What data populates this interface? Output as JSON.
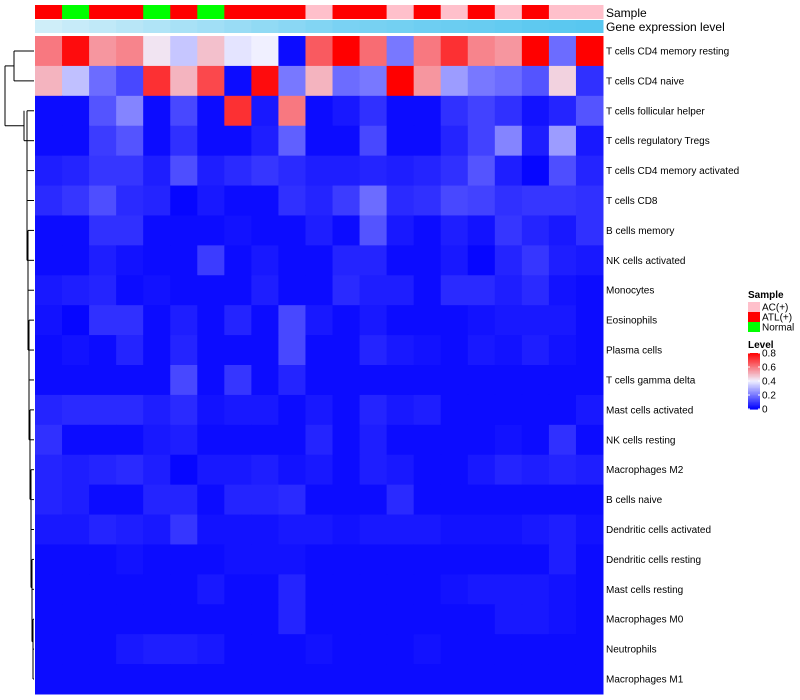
{
  "chart_data": {
    "type": "heatmap",
    "title": "",
    "annotations": [
      {
        "name": "Sample",
        "type": "categorical"
      },
      {
        "name": "Gene expression level",
        "type": "continuous"
      }
    ],
    "samples": [
      "ATL(+)",
      "Normal",
      "ATL(+)",
      "ATL(+)",
      "Normal",
      "ATL(+)",
      "Normal",
      "ATL(+)",
      "ATL(+)",
      "ATL(+)",
      "AC(+)",
      "ATL(+)",
      "ATL(+)",
      "AC(+)",
      "ATL(+)",
      "AC(+)",
      "ATL(+)",
      "AC(+)",
      "ATL(+)",
      "AC(+)",
      "AC(+)"
    ],
    "expression_level": [
      0.15,
      0.2,
      0.25,
      0.3,
      0.35,
      0.4,
      0.45,
      0.5,
      0.55,
      0.6,
      0.65,
      0.7,
      0.72,
      0.75,
      0.78,
      0.8,
      0.82,
      0.85,
      0.88,
      0.9,
      0.92
    ],
    "rows": [
      "T cells CD4 memory resting",
      "T cells CD4 naive",
      "T cells follicular helper",
      "T cells regulatory  Tregs",
      "T cells CD4 memory activated",
      "T cells CD8",
      "B cells memory",
      "NK cells activated",
      "Monocytes",
      "Eosinophils",
      "Plasma cells",
      "T cells gamma delta",
      "Mast cells activated",
      "NK cells resting",
      "Macrophages M2",
      "B cells naive",
      "Dendritic cells activated",
      "Dendritic cells resting",
      "Mast cells resting",
      "Macrophages M0",
      "Neutrophils",
      "Macrophages M1"
    ],
    "values": [
      [
        0.6,
        0.78,
        0.55,
        0.58,
        0.42,
        0.33,
        0.48,
        0.38,
        0.4,
        0.02,
        0.65,
        0.8,
        0.62,
        0.2,
        0.6,
        0.72,
        0.58,
        0.55,
        0.8,
        0.18,
        0.8
      ],
      [
        0.5,
        0.32,
        0.18,
        0.12,
        0.72,
        0.5,
        0.68,
        0.02,
        0.78,
        0.2,
        0.5,
        0.18,
        0.2,
        0.8,
        0.55,
        0.26,
        0.2,
        0.18,
        0.14,
        0.45,
        0.08
      ],
      [
        0.02,
        0.02,
        0.14,
        0.22,
        0.02,
        0.12,
        0.02,
        0.72,
        0.04,
        0.6,
        0.02,
        0.04,
        0.08,
        0.02,
        0.02,
        0.08,
        0.11,
        0.08,
        0.03,
        0.06,
        0.14
      ],
      [
        0.02,
        0.02,
        0.1,
        0.14,
        0.02,
        0.08,
        0.02,
        0.02,
        0.05,
        0.16,
        0.02,
        0.02,
        0.12,
        0.02,
        0.02,
        0.06,
        0.11,
        0.22,
        0.05,
        0.26,
        0.04
      ],
      [
        0.05,
        0.06,
        0.09,
        0.09,
        0.05,
        0.13,
        0.05,
        0.07,
        0.09,
        0.07,
        0.05,
        0.05,
        0.06,
        0.05,
        0.06,
        0.08,
        0.14,
        0.05,
        0.01,
        0.13,
        0.06
      ],
      [
        0.07,
        0.09,
        0.13,
        0.07,
        0.06,
        0.01,
        0.04,
        0.02,
        0.02,
        0.08,
        0.06,
        0.1,
        0.18,
        0.07,
        0.08,
        0.12,
        0.11,
        0.08,
        0.09,
        0.09,
        0.08
      ],
      [
        0.02,
        0.02,
        0.08,
        0.08,
        0.02,
        0.02,
        0.02,
        0.03,
        0.02,
        0.02,
        0.05,
        0.02,
        0.14,
        0.04,
        0.02,
        0.05,
        0.03,
        0.09,
        0.06,
        0.04,
        0.08
      ],
      [
        0.02,
        0.02,
        0.05,
        0.03,
        0.02,
        0.02,
        0.1,
        0.02,
        0.04,
        0.02,
        0.02,
        0.06,
        0.06,
        0.02,
        0.02,
        0.04,
        0.01,
        0.06,
        0.09,
        0.05,
        0.04
      ],
      [
        0.04,
        0.05,
        0.06,
        0.02,
        0.03,
        0.02,
        0.02,
        0.02,
        0.05,
        0.02,
        0.02,
        0.07,
        0.05,
        0.05,
        0.02,
        0.07,
        0.07,
        0.05,
        0.07,
        0.03,
        0.02
      ],
      [
        0.03,
        0.01,
        0.08,
        0.08,
        0.02,
        0.05,
        0.02,
        0.06,
        0.02,
        0.12,
        0.04,
        0.02,
        0.04,
        0.02,
        0.02,
        0.02,
        0.03,
        0.04,
        0.04,
        0.04,
        0.02
      ],
      [
        0.02,
        0.03,
        0.02,
        0.06,
        0.02,
        0.06,
        0.02,
        0.02,
        0.02,
        0.12,
        0.02,
        0.02,
        0.06,
        0.04,
        0.03,
        0.02,
        0.04,
        0.03,
        0.05,
        0.03,
        0.02
      ],
      [
        0.02,
        0.02,
        0.02,
        0.02,
        0.02,
        0.12,
        0.02,
        0.09,
        0.02,
        0.06,
        0.02,
        0.02,
        0.02,
        0.02,
        0.02,
        0.02,
        0.02,
        0.02,
        0.02,
        0.02,
        0.02
      ],
      [
        0.06,
        0.07,
        0.07,
        0.07,
        0.05,
        0.07,
        0.03,
        0.04,
        0.04,
        0.02,
        0.04,
        0.02,
        0.06,
        0.04,
        0.05,
        0.02,
        0.02,
        0.02,
        0.02,
        0.02,
        0.04
      ],
      [
        0.08,
        0.02,
        0.02,
        0.02,
        0.04,
        0.05,
        0.02,
        0.02,
        0.02,
        0.02,
        0.06,
        0.02,
        0.05,
        0.02,
        0.02,
        0.02,
        0.02,
        0.03,
        0.02,
        0.08,
        0.02
      ],
      [
        0.06,
        0.05,
        0.06,
        0.07,
        0.05,
        0.01,
        0.04,
        0.04,
        0.05,
        0.03,
        0.04,
        0.02,
        0.05,
        0.04,
        0.02,
        0.02,
        0.04,
        0.06,
        0.05,
        0.06,
        0.05
      ],
      [
        0.06,
        0.05,
        0.02,
        0.02,
        0.06,
        0.06,
        0.02,
        0.06,
        0.06,
        0.07,
        0.02,
        0.02,
        0.02,
        0.07,
        0.02,
        0.02,
        0.02,
        0.02,
        0.02,
        0.02,
        0.02
      ],
      [
        0.04,
        0.04,
        0.06,
        0.05,
        0.04,
        0.09,
        0.03,
        0.03,
        0.03,
        0.04,
        0.04,
        0.03,
        0.04,
        0.04,
        0.04,
        0.03,
        0.03,
        0.03,
        0.04,
        0.05,
        0.03
      ],
      [
        0.02,
        0.02,
        0.02,
        0.03,
        0.02,
        0.02,
        0.02,
        0.03,
        0.03,
        0.03,
        0.02,
        0.02,
        0.02,
        0.02,
        0.02,
        0.02,
        0.02,
        0.02,
        0.02,
        0.05,
        0.02
      ],
      [
        0.02,
        0.02,
        0.02,
        0.02,
        0.02,
        0.02,
        0.04,
        0.02,
        0.02,
        0.06,
        0.02,
        0.02,
        0.02,
        0.02,
        0.02,
        0.03,
        0.04,
        0.04,
        0.04,
        0.03,
        0.02
      ],
      [
        0.02,
        0.02,
        0.02,
        0.02,
        0.02,
        0.02,
        0.02,
        0.02,
        0.02,
        0.06,
        0.02,
        0.02,
        0.02,
        0.02,
        0.02,
        0.02,
        0.02,
        0.04,
        0.04,
        0.03,
        0.02
      ],
      [
        0.02,
        0.02,
        0.02,
        0.04,
        0.05,
        0.05,
        0.04,
        0.02,
        0.02,
        0.02,
        0.03,
        0.02,
        0.02,
        0.02,
        0.03,
        0.02,
        0.02,
        0.02,
        0.02,
        0.02,
        0.02
      ],
      [
        0.02,
        0.02,
        0.02,
        0.02,
        0.02,
        0.02,
        0.02,
        0.02,
        0.02,
        0.02,
        0.02,
        0.02,
        0.02,
        0.02,
        0.02,
        0.02,
        0.02,
        0.02,
        0.02,
        0.02,
        0.02
      ]
    ],
    "legend": {
      "sample_title": "Sample",
      "sample_entries": [
        {
          "label": "AC(+)",
          "color": "#ffc0cb"
        },
        {
          "label": "ATL(+)",
          "color": "#ff0000"
        },
        {
          "label": "Normal",
          "color": "#00ff00"
        }
      ],
      "level_title": "Level",
      "level_ticks": [
        "0.8",
        "0.6",
        "0.4",
        "0.2",
        "0"
      ],
      "level_range": [
        0,
        0.8
      ]
    },
    "colormap": {
      "low": "#0000ff",
      "mid": "#f0f0ff",
      "high": "#ff0000",
      "midpoint": 0.4
    },
    "annotation_colors": {
      "expr_low": "#e6f5fb",
      "expr_high": "#4cc3ef"
    },
    "row_dendrogram": "shown on left",
    "legend_placement": "right"
  }
}
